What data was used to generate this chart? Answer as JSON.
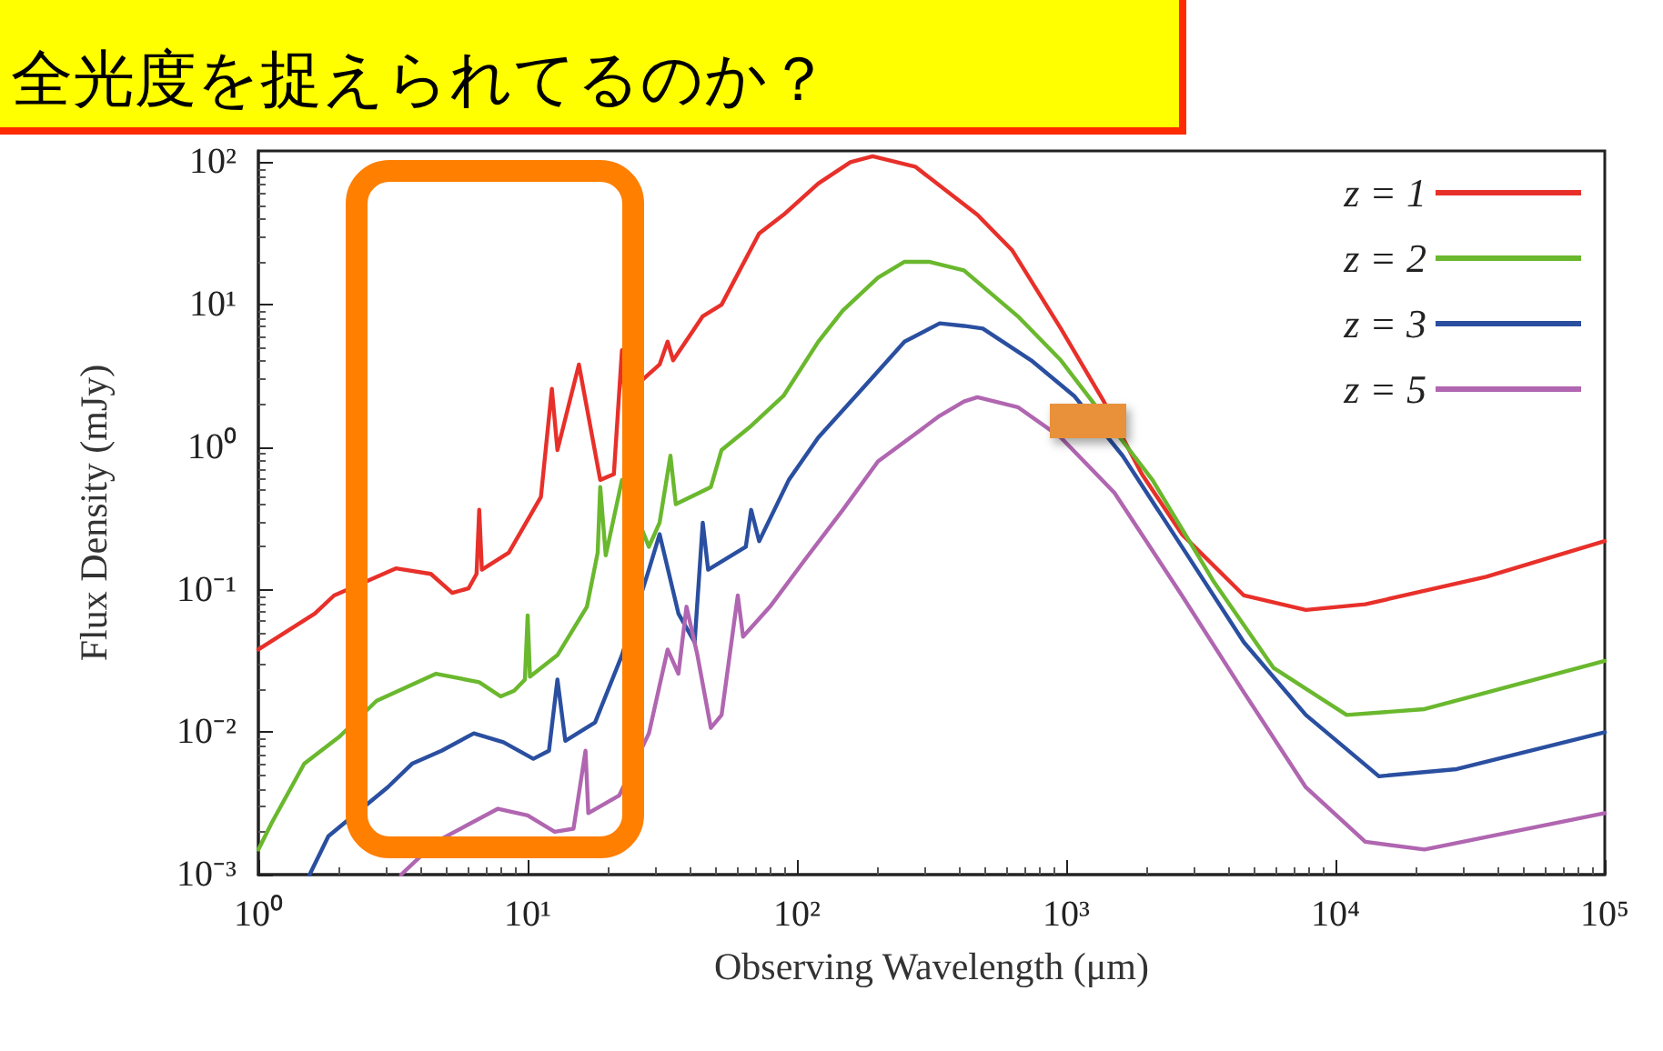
{
  "chart_data": {
    "type": "line",
    "xlabel": "Observing Wavelength (μm)",
    "ylabel": "Flux Density (mJy)",
    "annotations": [
      "全光度を捉えられてるのか？"
    ],
    "log": "xy",
    "xlim": [
      1,
      100000
    ],
    "xticks": [
      {
        "value": 1,
        "label": "10⁰"
      },
      {
        "value": 10,
        "label": "10¹"
      },
      {
        "value": 100,
        "label": "10²"
      },
      {
        "value": 1000,
        "label": "10³"
      },
      {
        "value": 10000,
        "label": "10⁴"
      },
      {
        "value": 100000,
        "label": "10⁵"
      }
    ],
    "ylim": [
      0.001,
      120
    ],
    "yticks": [
      {
        "value": 0.001,
        "label": "10⁻³"
      },
      {
        "value": 0.01,
        "label": "10⁻²"
      },
      {
        "value": 0.1,
        "label": "10⁻¹"
      },
      {
        "value": 1,
        "label": "10⁰"
      },
      {
        "value": 10,
        "label": "10¹"
      },
      {
        "value": 100,
        "label": "10²"
      }
    ],
    "legend": "top right",
    "marker": "none",
    "line_style": "solid",
    "series": [
      {
        "name": "z = 1",
        "color": "#e8302a",
        "x": [
          1,
          1.62,
          1.91,
          3.24,
          4.37,
          5.25,
          6.03,
          6.46,
          6.61,
          6.76,
          8.51,
          11.2,
          12.3,
          12.9,
          15.5,
          18.6,
          20.9,
          22.4,
          22.9,
          30.9,
          33.1,
          34.7,
          44.7,
          52.5,
          72.4,
          89.1,
          120,
          158,
          191,
          275,
          468,
          631,
          955,
          1380,
          1910,
          2690,
          4570,
          7760,
          12900,
          36300,
          100000
        ],
        "values": [
          0.038,
          0.068,
          0.091,
          0.141,
          0.129,
          0.095,
          0.102,
          0.129,
          0.363,
          0.138,
          0.182,
          0.447,
          2.57,
          0.955,
          3.8,
          0.589,
          0.646,
          4.79,
          2.29,
          3.8,
          5.5,
          4.07,
          8.3,
          10,
          31.6,
          42.7,
          70.8,
          100,
          110,
          93,
          42.7,
          24,
          6.8,
          2.09,
          0.646,
          0.245,
          0.091,
          0.072,
          0.079,
          0.123,
          0.219
        ]
      },
      {
        "name": "z = 2",
        "color": "#6ab82e",
        "x": [
          1,
          1.12,
          1.48,
          2.0,
          2.75,
          4.57,
          6.61,
          7.94,
          8.91,
          9.77,
          10,
          10.2,
          12.9,
          16.6,
          18.2,
          18.6,
          19.5,
          22.4,
          28.2,
          30.9,
          33.9,
          35.5,
          47.9,
          52.5,
          67.6,
          89.1,
          120,
          148,
          200,
          251,
          309,
          417,
          661,
          955,
          2090,
          3550,
          5890,
          11000,
          21400,
          100000
        ],
        "values": [
          0.0015,
          0.0023,
          0.006,
          0.0093,
          0.0166,
          0.0257,
          0.0224,
          0.0178,
          0.0195,
          0.0234,
          0.066,
          0.0245,
          0.0347,
          0.0759,
          0.182,
          0.525,
          0.174,
          0.589,
          0.2,
          0.295,
          0.871,
          0.398,
          0.525,
          0.955,
          1.41,
          2.29,
          5.5,
          9.1,
          15.5,
          20,
          20,
          17.4,
          8.3,
          4.07,
          0.589,
          0.112,
          0.0282,
          0.0132,
          0.0145,
          0.0316
        ]
      },
      {
        "name": "z = 3",
        "color": "#2a4fa0",
        "x": [
          1.55,
          1.82,
          3.02,
          3.72,
          4.79,
          6.31,
          8.13,
          10.5,
          12.0,
          12.9,
          13.8,
          17.8,
          22.4,
          28.2,
          30.9,
          36.3,
          41.7,
          44.7,
          46.8,
          64.6,
          67.6,
          72.4,
          93.3,
          120,
          191,
          251,
          339,
          417,
          490,
          741,
          1070,
          1620,
          2690,
          4570,
          7760,
          14500,
          28200,
          100000
        ],
        "values": [
          0.001,
          0.00186,
          0.0041,
          0.006,
          0.0074,
          0.0098,
          0.0085,
          0.0065,
          0.0074,
          0.0234,
          0.0087,
          0.0117,
          0.0347,
          0.138,
          0.245,
          0.068,
          0.0427,
          0.295,
          0.138,
          0.2,
          0.363,
          0.219,
          0.589,
          1.17,
          3.09,
          5.5,
          7.4,
          7.1,
          6.8,
          4.07,
          2.29,
          0.871,
          0.2,
          0.0427,
          0.0132,
          0.0049,
          0.0055,
          0.01
        ]
      },
      {
        "name": "z = 5",
        "color": "#b066b0",
        "x": [
          3.39,
          4.57,
          7.76,
          10,
          12.6,
          14.8,
          16.4,
          16.8,
          21.9,
          28.2,
          33.1,
          36.3,
          38.9,
          42.7,
          47.9,
          52.5,
          60.3,
          63.1,
          79.4,
          107,
          148,
          200,
          339,
          417,
          468,
          661,
          955,
          1510,
          2690,
          4570,
          7760,
          12900,
          21400,
          100000
        ],
        "values": [
          0.001,
          0.0017,
          0.0029,
          0.0026,
          0.002,
          0.0021,
          0.0074,
          0.0027,
          0.0036,
          0.0098,
          0.038,
          0.0257,
          0.0759,
          0.0347,
          0.0107,
          0.0132,
          0.091,
          0.0468,
          0.0759,
          0.162,
          0.363,
          0.794,
          1.66,
          2.09,
          2.24,
          1.91,
          1.17,
          0.479,
          0.091,
          0.019,
          0.0041,
          0.0017,
          0.0015,
          0.0027
        ]
      }
    ]
  }
}
